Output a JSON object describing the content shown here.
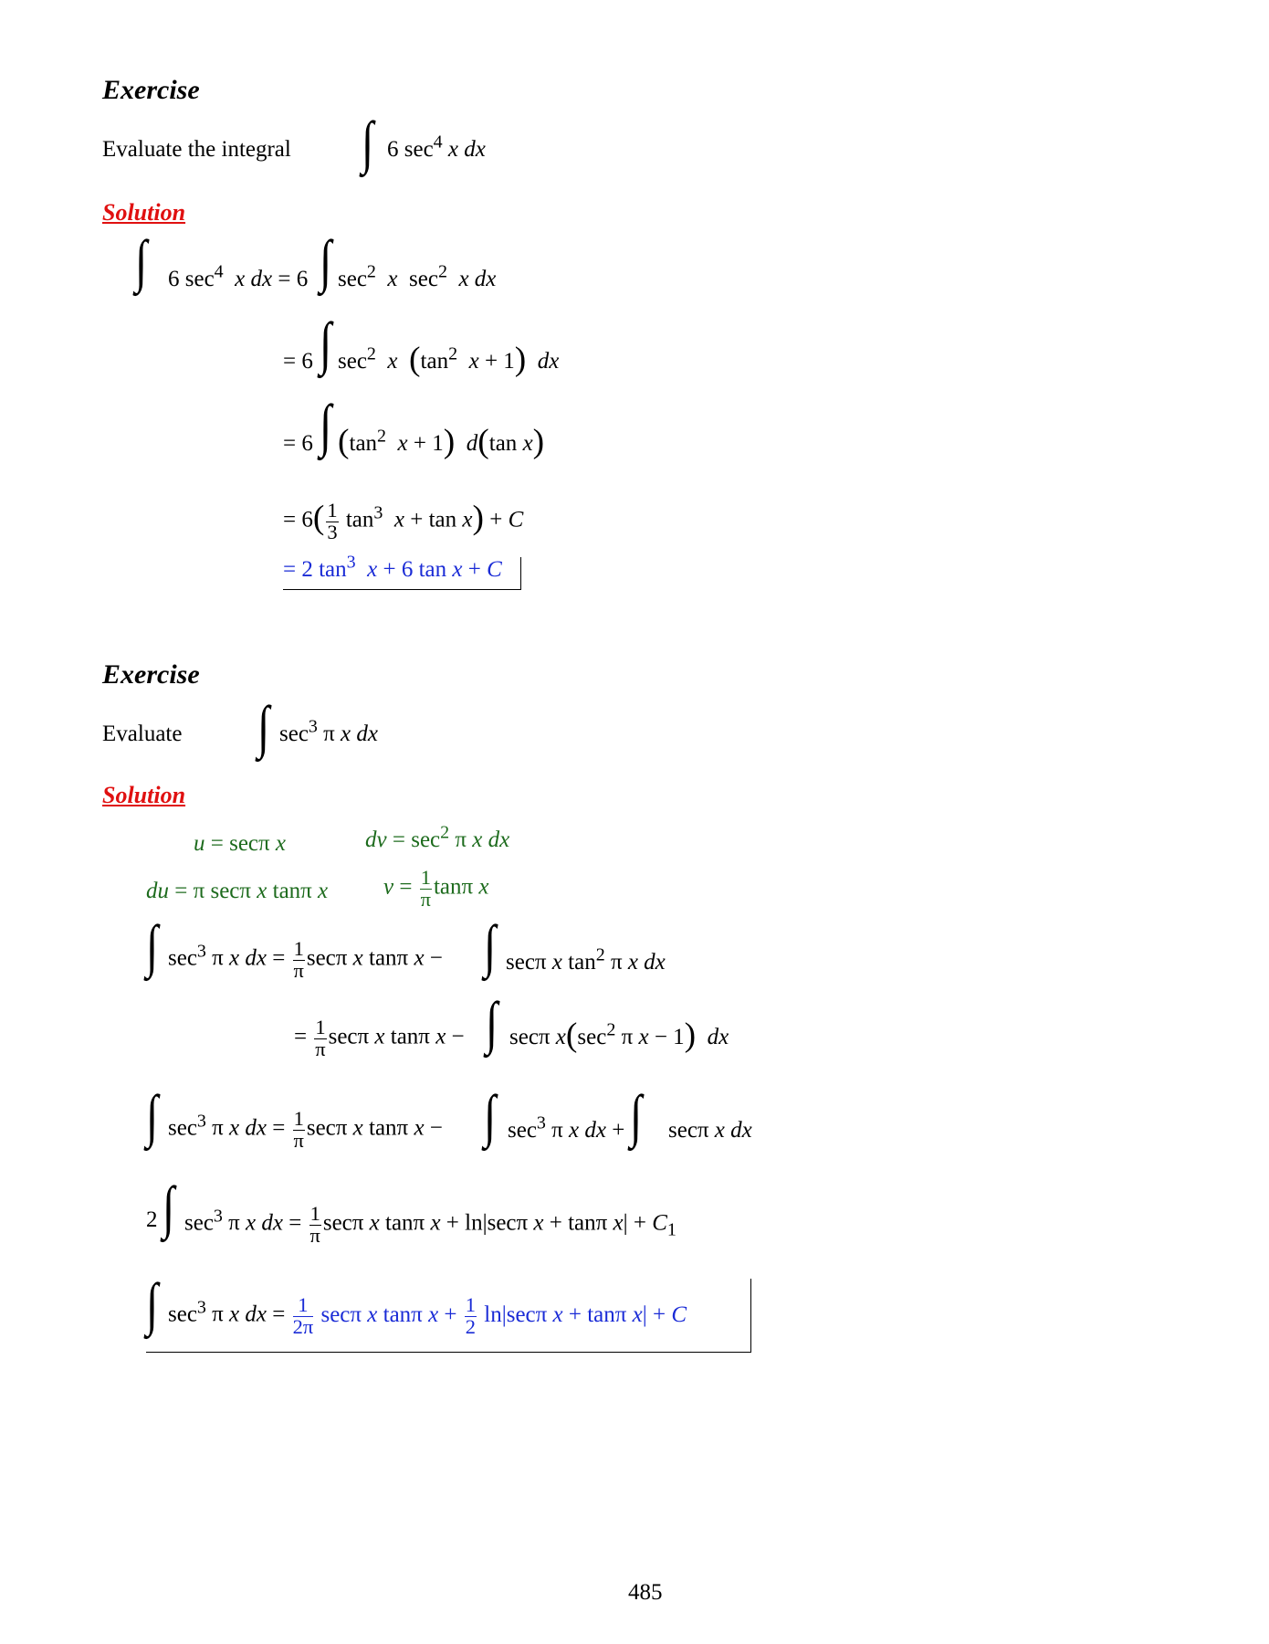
{
  "ex1": {
    "heading": "Exercise",
    "prompt": "Evaluate the integral",
    "integrand": "6 sec",
    "integrand_exp": "4",
    "integrand_rest": "x dx",
    "solution_label": "Solution",
    "steps": [
      "6 sec⁴ x dx = 6 ∫ sec² x sec² x dx",
      "= 6 ∫ sec² x (tan² x + 1) dx",
      "= 6 ∫ (tan² x + 1) d(tan x)",
      "= 6(1/3 tan³ x + tan x) + C",
      "= 2 tan³ x + 6 tan x + C"
    ]
  },
  "ex2": {
    "heading": "Exercise",
    "prompt": "Evaluate",
    "solution_label": "Solution",
    "u": "u = secπ x",
    "dv": "dv = sec² π x dx",
    "du": "du = π secπ x tanπ x",
    "v": "v = 1/π tanπ x",
    "steps": [
      "∫ sec³ π x dx = 1/π secπ x tanπ x − ∫ secπ x tan² π x dx",
      "= 1/π secπ x tanπ x − ∫ secπ x(sec² π x − 1) dx",
      "∫ sec³ π x dx = 1/π secπ x tanπ x − ∫ sec³ π x dx + ∫ secπ x dx",
      "2 ∫ sec³ π x dx = 1/π secπ x tanπ x + ln|secπ x + tanπ x| + C₁",
      "∫ sec³ π x dx = 1/2π secπ x tanπ x + 1/2 ln|secπ x + tanπ x| + C"
    ]
  },
  "page_number": "485"
}
